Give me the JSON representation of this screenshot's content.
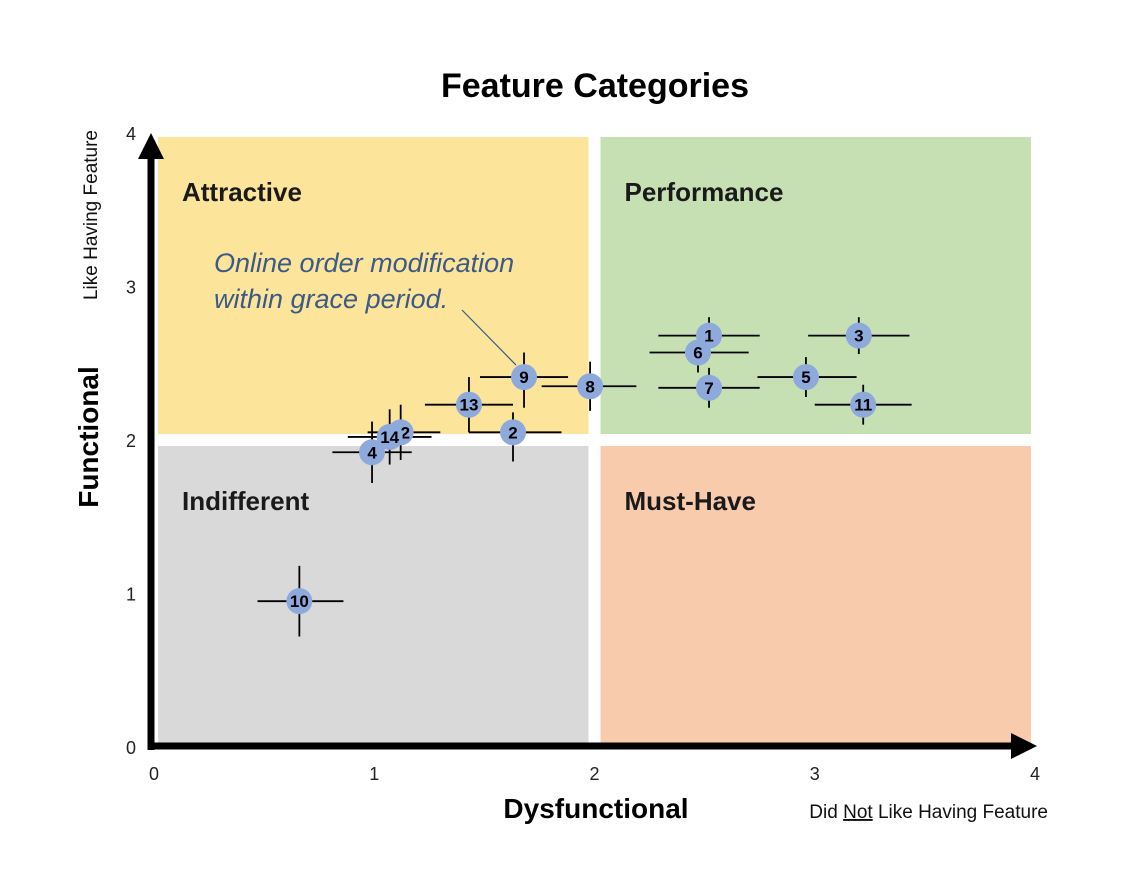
{
  "colors": {
    "attractive": "#fce59a",
    "performance": "#c6e0b4",
    "indifferent": "#d9d9d9",
    "must_have": "#f8cbad",
    "point": "#8ea9db",
    "axis": "#000000",
    "annotation": "#3b5a88"
  },
  "chart_data": {
    "type": "scatter",
    "title": "Feature Categories",
    "xlabel": "Dysfunctional",
    "ylabel": "Functional",
    "x_note_parts": [
      "Did ",
      "Not",
      " Like Having Feature"
    ],
    "y_note": "Like Having Feature",
    "xlim": [
      0,
      4
    ],
    "ylim": [
      0,
      4
    ],
    "x_ticks": [
      0,
      1,
      2,
      3,
      4
    ],
    "y_ticks": [
      0,
      1,
      2,
      3,
      4
    ],
    "grid": false,
    "quadrants": [
      {
        "name": "Attractive",
        "x": [
          0,
          2
        ],
        "y": [
          2,
          4
        ],
        "color": "#fce59a"
      },
      {
        "name": "Performance",
        "x": [
          2,
          4
        ],
        "y": [
          2,
          4
        ],
        "color": "#c6e0b4"
      },
      {
        "name": "Indifferent",
        "x": [
          0,
          2
        ],
        "y": [
          0,
          2
        ],
        "color": "#d9d9d9"
      },
      {
        "name": "Must-Have",
        "x": [
          2,
          4
        ],
        "y": [
          0,
          2
        ],
        "color": "#f8cbad"
      }
    ],
    "annotation": {
      "lines": [
        "Online order modification",
        "within grace period."
      ],
      "target_point": "9"
    },
    "points": [
      {
        "label": "1",
        "x": 2.52,
        "y": 2.68,
        "xerr": [
          0.23,
          0.23
        ],
        "yerr": [
          0.12,
          0.12
        ]
      },
      {
        "label": "2",
        "x": 1.63,
        "y": 2.05,
        "xerr": [
          0.2,
          0.22
        ],
        "yerr": [
          0.19,
          0.13
        ]
      },
      {
        "label": "3",
        "x": 3.2,
        "y": 2.68,
        "xerr": [
          0.23,
          0.23
        ],
        "yerr": [
          0.12,
          0.12
        ]
      },
      {
        "label": "4",
        "x": 0.99,
        "y": 1.92,
        "xerr": [
          0.18,
          0.18
        ],
        "yerr": [
          0.2,
          0.2
        ]
      },
      {
        "label": "5",
        "x": 2.96,
        "y": 2.41,
        "xerr": [
          0.22,
          0.23
        ],
        "yerr": [
          0.13,
          0.13
        ]
      },
      {
        "label": "6",
        "x": 2.47,
        "y": 2.57,
        "xerr": [
          0.22,
          0.23
        ],
        "yerr": [
          0.13,
          0.13
        ]
      },
      {
        "label": "7",
        "x": 2.52,
        "y": 2.34,
        "xerr": [
          0.23,
          0.23
        ],
        "yerr": [
          0.13,
          0.13
        ]
      },
      {
        "label": "8",
        "x": 1.98,
        "y": 2.35,
        "xerr": [
          0.22,
          0.21
        ],
        "yerr": [
          0.16,
          0.16
        ]
      },
      {
        "label": "9",
        "x": 1.68,
        "y": 2.41,
        "xerr": [
          0.2,
          0.2
        ],
        "yerr": [
          0.2,
          0.16
        ]
      },
      {
        "label": "10",
        "x": 0.66,
        "y": 0.95,
        "xerr": [
          0.19,
          0.2
        ],
        "yerr": [
          0.23,
          0.23
        ]
      },
      {
        "label": "11",
        "x": 3.22,
        "y": 2.23,
        "xerr": [
          0.22,
          0.22
        ],
        "yerr": [
          0.13,
          0.13
        ]
      },
      {
        "label": "12",
        "x": 1.12,
        "y": 2.05,
        "xerr": [
          0.15,
          0.18
        ],
        "yerr": [
          0.18,
          0.18
        ]
      },
      {
        "label": "13",
        "x": 1.43,
        "y": 2.23,
        "xerr": [
          0.2,
          0.2
        ],
        "yerr": [
          0.18,
          0.18
        ]
      },
      {
        "label": "14",
        "x": 1.07,
        "y": 2.02,
        "xerr": [
          0.19,
          0.19
        ],
        "yerr": [
          0.18,
          0.18
        ]
      }
    ]
  }
}
